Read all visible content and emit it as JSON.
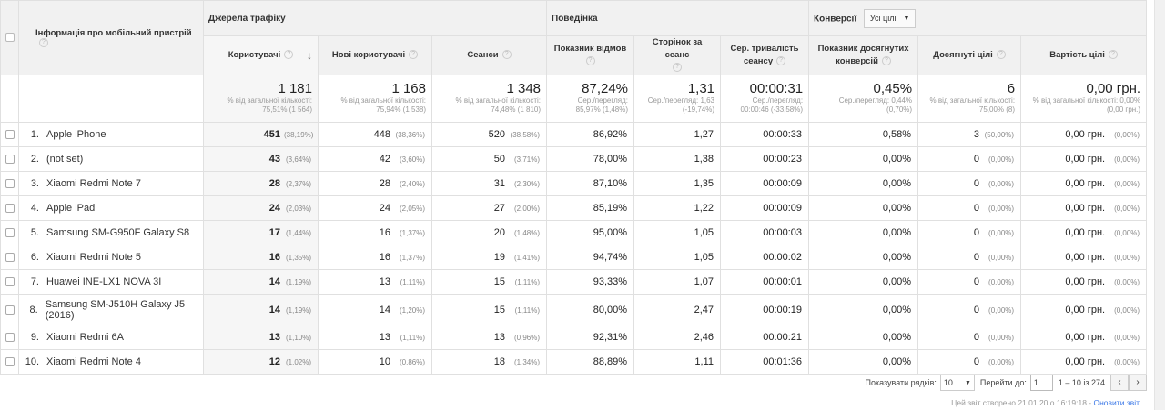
{
  "groups": {
    "dimension": "Інформація про мобільний пристрій",
    "acquisition": "Джерела трафіку",
    "behavior": "Поведінка",
    "conversions": "Конверсії",
    "conversions_select": "Усі цілі"
  },
  "columns": {
    "users": "Користувачі",
    "new_users": "Нові користувачі",
    "sessions": "Сеанси",
    "bounce": "Показник відмов",
    "pages": "Сторінок за сеанс",
    "duration": "Сер. тривалість сеансу",
    "conv_rate": "Показник досягнутих конверсій",
    "completions": "Досягнуті цілі",
    "value": "Вартість цілі"
  },
  "totals": {
    "users": {
      "main": "1 181",
      "sub": "% від загальної кількості: 75,51% (1 564)"
    },
    "new_users": {
      "main": "1 168",
      "sub": "% від загальної кількості: 75,94% (1 538)"
    },
    "sessions": {
      "main": "1 348",
      "sub": "% від загальної кількості: 74,48% (1 810)"
    },
    "bounce": {
      "main": "87,24%",
      "sub": "Сер./перегляд: 85,97% (1,48%)"
    },
    "pages": {
      "main": "1,31",
      "sub": "Сер./перегляд: 1,63 (-19,74%)"
    },
    "duration": {
      "main": "00:00:31",
      "sub": "Сер./перегляд: 00:00:46 (-33,58%)"
    },
    "conv_rate": {
      "main": "0,45%",
      "sub": "Сер./перегляд: 0,44% (0,70%)"
    },
    "completions": {
      "main": "6",
      "sub": "% від загальної кількості: 75,00% (8)"
    },
    "value": {
      "main": "0,00 грн.",
      "sub": "% від загальної кількості: 0,00% (0,00 грн.)"
    }
  },
  "rows": [
    {
      "n": "1.",
      "name": "Apple iPhone",
      "users": "451",
      "users_p": "(38,19%)",
      "new_users": "448",
      "new_users_p": "(38,36%)",
      "sessions": "520",
      "sessions_p": "(38,58%)",
      "bounce": "86,92%",
      "pages": "1,27",
      "duration": "00:00:33",
      "conv_rate": "0,58%",
      "completions": "3",
      "completions_p": "(50,00%)",
      "value": "0,00 грн.",
      "value_p": "(0,00%)"
    },
    {
      "n": "2.",
      "name": "(not set)",
      "users": "43",
      "users_p": "(3,64%)",
      "new_users": "42",
      "new_users_p": "(3,60%)",
      "sessions": "50",
      "sessions_p": "(3,71%)",
      "bounce": "78,00%",
      "pages": "1,38",
      "duration": "00:00:23",
      "conv_rate": "0,00%",
      "completions": "0",
      "completions_p": "(0,00%)",
      "value": "0,00 грн.",
      "value_p": "(0,00%)"
    },
    {
      "n": "3.",
      "name": "Xiaomi Redmi Note 7",
      "users": "28",
      "users_p": "(2,37%)",
      "new_users": "28",
      "new_users_p": "(2,40%)",
      "sessions": "31",
      "sessions_p": "(2,30%)",
      "bounce": "87,10%",
      "pages": "1,35",
      "duration": "00:00:09",
      "conv_rate": "0,00%",
      "completions": "0",
      "completions_p": "(0,00%)",
      "value": "0,00 грн.",
      "value_p": "(0,00%)"
    },
    {
      "n": "4.",
      "name": "Apple iPad",
      "users": "24",
      "users_p": "(2,03%)",
      "new_users": "24",
      "new_users_p": "(2,05%)",
      "sessions": "27",
      "sessions_p": "(2,00%)",
      "bounce": "85,19%",
      "pages": "1,22",
      "duration": "00:00:09",
      "conv_rate": "0,00%",
      "completions": "0",
      "completions_p": "(0,00%)",
      "value": "0,00 грн.",
      "value_p": "(0,00%)"
    },
    {
      "n": "5.",
      "name": "Samsung SM-G950F Galaxy S8",
      "users": "17",
      "users_p": "(1,44%)",
      "new_users": "16",
      "new_users_p": "(1,37%)",
      "sessions": "20",
      "sessions_p": "(1,48%)",
      "bounce": "95,00%",
      "pages": "1,05",
      "duration": "00:00:03",
      "conv_rate": "0,00%",
      "completions": "0",
      "completions_p": "(0,00%)",
      "value": "0,00 грн.",
      "value_p": "(0,00%)"
    },
    {
      "n": "6.",
      "name": "Xiaomi Redmi Note 5",
      "users": "16",
      "users_p": "(1,35%)",
      "new_users": "16",
      "new_users_p": "(1,37%)",
      "sessions": "19",
      "sessions_p": "(1,41%)",
      "bounce": "94,74%",
      "pages": "1,05",
      "duration": "00:00:02",
      "conv_rate": "0,00%",
      "completions": "0",
      "completions_p": "(0,00%)",
      "value": "0,00 грн.",
      "value_p": "(0,00%)"
    },
    {
      "n": "7.",
      "name": "Huawei INE-LX1 NOVA 3I",
      "users": "14",
      "users_p": "(1,19%)",
      "new_users": "13",
      "new_users_p": "(1,11%)",
      "sessions": "15",
      "sessions_p": "(1,11%)",
      "bounce": "93,33%",
      "pages": "1,07",
      "duration": "00:00:01",
      "conv_rate": "0,00%",
      "completions": "0",
      "completions_p": "(0,00%)",
      "value": "0,00 грн.",
      "value_p": "(0,00%)"
    },
    {
      "n": "8.",
      "name": "Samsung SM-J510H Galaxy J5 (2016)",
      "users": "14",
      "users_p": "(1,19%)",
      "new_users": "14",
      "new_users_p": "(1,20%)",
      "sessions": "15",
      "sessions_p": "(1,11%)",
      "bounce": "80,00%",
      "pages": "2,47",
      "duration": "00:00:19",
      "conv_rate": "0,00%",
      "completions": "0",
      "completions_p": "(0,00%)",
      "value": "0,00 грн.",
      "value_p": "(0,00%)"
    },
    {
      "n": "9.",
      "name": "Xiaomi Redmi 6A",
      "users": "13",
      "users_p": "(1,10%)",
      "new_users": "13",
      "new_users_p": "(1,11%)",
      "sessions": "13",
      "sessions_p": "(0,96%)",
      "bounce": "92,31%",
      "pages": "2,46",
      "duration": "00:00:21",
      "conv_rate": "0,00%",
      "completions": "0",
      "completions_p": "(0,00%)",
      "value": "0,00 грн.",
      "value_p": "(0,00%)"
    },
    {
      "n": "10.",
      "name": "Xiaomi Redmi Note 4",
      "users": "12",
      "users_p": "(1,02%)",
      "new_users": "10",
      "new_users_p": "(0,86%)",
      "sessions": "18",
      "sessions_p": "(1,34%)",
      "bounce": "88,89%",
      "pages": "1,11",
      "duration": "00:01:36",
      "conv_rate": "0,00%",
      "completions": "0",
      "completions_p": "(0,00%)",
      "value": "0,00 грн.",
      "value_p": "(0,00%)"
    }
  ],
  "pagination": {
    "show_rows_label": "Показувати рядків:",
    "show_rows_value": "10",
    "goto_label": "Перейти до:",
    "goto_value": "1",
    "range": "1 – 10 із 274"
  },
  "footer": {
    "created": "Цей звіт створено 21.01.20 о 16:19:18 - ",
    "refresh": "Оновити звіт"
  },
  "colors": {
    "header_bg": "#f1f1f1",
    "sorted_bg": "#f6f6f6",
    "link": "#3b78e7",
    "border": "#e0e0e0"
  }
}
